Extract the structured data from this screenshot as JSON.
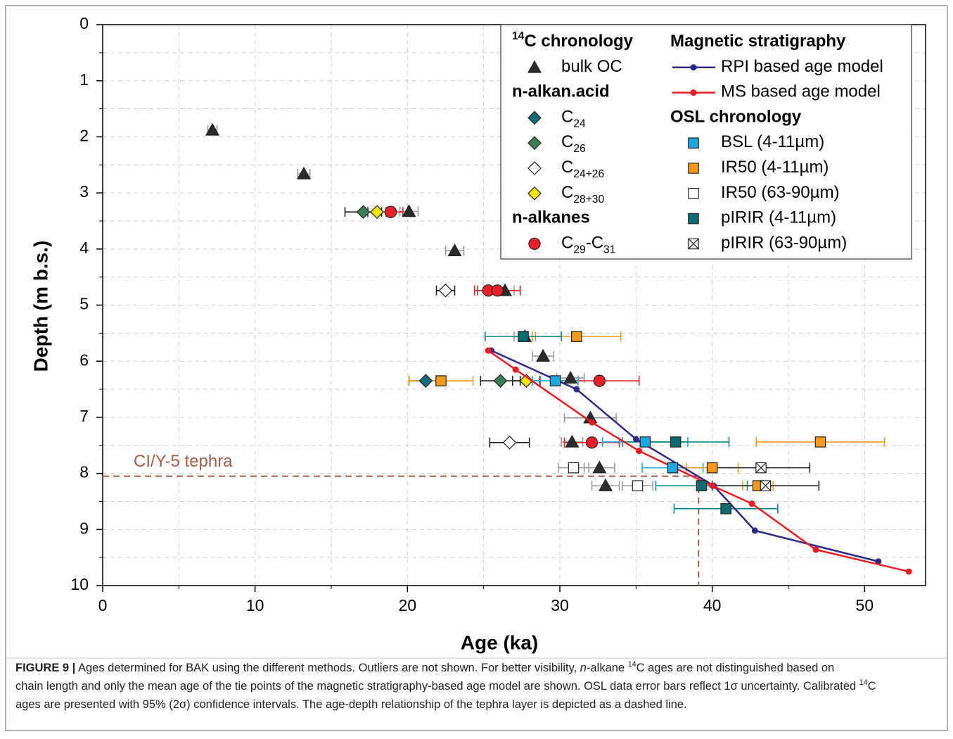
{
  "chart_data": {
    "type": "scatter",
    "x_label": "Age (ka)",
    "y_label": "Depth (m b.s.)",
    "xlim": [
      0,
      54
    ],
    "ylim": [
      0,
      10
    ],
    "y_inverted": true,
    "xticks": [
      0,
      10,
      20,
      30,
      40,
      50
    ],
    "yticks": [
      0,
      1,
      2,
      3,
      4,
      5,
      6,
      7,
      8,
      9,
      10
    ],
    "xminor": [
      5,
      15,
      25,
      35,
      45
    ],
    "yminor": [
      0.5,
      1.5,
      2.5,
      3.5,
      4.5,
      5.5,
      6.5,
      7.5,
      8.5,
      9.5
    ],
    "grid": true,
    "groups": [
      {
        "title": [
          {
            "t": "14",
            "sup": true
          },
          {
            "t": "C chronology"
          }
        ],
        "series": [
          {
            "name": [
              {
                "t": "bulk OC"
              }
            ],
            "marker": "triangle",
            "color": "#2b2b2b",
            "err_color": "#9a9a9a",
            "x": [
              7.2,
              13.2,
              20.1,
              23.1,
              26.4,
              27.7,
              28.9,
              30.7,
              32.0,
              30.8,
              32.6,
              33.0
            ],
            "y": [
              1.88,
              2.66,
              3.33,
              4.03,
              4.74,
              5.56,
              5.91,
              6.3,
              7.01,
              7.44,
              7.9,
              8.22
            ],
            "xerr": [
              0.3,
              0.4,
              0.6,
              0.6,
              0.6,
              0.7,
              0.7,
              0.9,
              1.7,
              0.7,
              1.0,
              0.9
            ]
          }
        ]
      },
      {
        "title": [
          {
            "t": "n-alkan.acid"
          }
        ],
        "series": [
          {
            "name": [
              {
                "t": "C"
              },
              {
                "t": "24",
                "sub": true
              }
            ],
            "marker": "diamond",
            "color": "#166b78",
            "err_color": "#222222",
            "x": [
              21.2
            ],
            "y": [
              6.35
            ],
            "xerr": [
              1.1
            ]
          },
          {
            "name": [
              {
                "t": "C"
              },
              {
                "t": "26",
                "sub": true
              }
            ],
            "marker": "diamond",
            "color": "#3e7c58",
            "err_color": "#222222",
            "x": [
              17.1,
              26.1
            ],
            "y": [
              3.34,
              6.35
            ],
            "xerr": [
              1.2,
              1.3
            ]
          },
          {
            "name": [
              {
                "t": "C"
              },
              {
                "t": "24+26",
                "sub": true
              }
            ],
            "marker": "diamond",
            "color": "#ffffff",
            "err_color": "#222222",
            "x": [
              22.5,
              26.7
            ],
            "y": [
              4.74,
              7.45
            ],
            "xerr": [
              0.6,
              1.3
            ]
          },
          {
            "name": [
              {
                "t": "C"
              },
              {
                "t": "28+30",
                "sub": true
              }
            ],
            "marker": "diamond",
            "color": "#f2e500",
            "err_color": "#222222",
            "x": [
              18.0,
              27.8
            ],
            "y": [
              3.34,
              6.35
            ],
            "xerr": [
              0.6,
              0.9
            ]
          }
        ]
      },
      {
        "title": [
          {
            "t": "n-alkanes"
          }
        ],
        "series": [
          {
            "name": [
              {
                "t": "C"
              },
              {
                "t": "29",
                "sub": true
              },
              {
                "t": "-C"
              },
              {
                "t": "31",
                "sub": true
              }
            ],
            "marker": "circle",
            "color": "#e8202a",
            "err_color": "#e8202a",
            "x": [
              18.9,
              25.3,
              25.9,
              32.6,
              32.1
            ],
            "y": [
              3.34,
              4.74,
              4.74,
              6.35,
              7.45
            ],
            "xerr": [
              0.8,
              0.7,
              1.5,
              2.6,
              1.8
            ]
          }
        ]
      },
      {
        "title": [
          {
            "t": "Magnetic stratigraphy"
          }
        ],
        "series": [
          {
            "name": [
              {
                "t": "RPI based age model"
              }
            ],
            "marker": "line",
            "color": "#2e2a85",
            "x": [
              25.5,
              31.1,
              35.0,
              40.1,
              42.8,
              50.9
            ],
            "y": [
              5.81,
              6.5,
              7.39,
              8.22,
              9.02,
              9.57
            ]
          },
          {
            "name": [
              {
                "t": "MS based age model"
              }
            ],
            "marker": "line",
            "color": "#ec1c24",
            "x": [
              25.3,
              27.1,
              32.1,
              35.2,
              40.0,
              42.6,
              46.8,
              52.9
            ],
            "y": [
              5.81,
              6.15,
              7.09,
              7.6,
              8.22,
              8.54,
              9.36,
              9.75
            ]
          }
        ]
      },
      {
        "title": [
          {
            "t": "OSL chronology"
          }
        ],
        "series": [
          {
            "name": [
              {
                "t": "BSL (4-11µm)"
              }
            ],
            "marker": "square",
            "color": "#1ea6e0",
            "err_color": "#1ea6e0",
            "x": [
              29.7,
              35.6,
              37.4
            ],
            "y": [
              6.35,
              7.44,
              7.9
            ],
            "xerr": [
              1.5,
              2.8,
              2.0
            ]
          },
          {
            "name": [
              {
                "t": "IR50 (4-11µm)"
              }
            ],
            "marker": "square",
            "color": "#f39a1e",
            "err_color": "#f39a1e",
            "x": [
              31.1,
              22.2,
              47.1,
              40.0,
              43.0
            ],
            "y": [
              5.56,
              6.35,
              7.44,
              7.9,
              8.22
            ],
            "xerr": [
              2.9,
              2.1,
              4.2,
              1.7,
              1.0
            ]
          },
          {
            "name": [
              {
                "t": "IR50 (63-90µm)"
              }
            ],
            "marker": "square",
            "color": "#ffffff",
            "err_color": "#999999",
            "x": [
              30.9,
              35.1
            ],
            "y": [
              7.9,
              8.22
            ],
            "xerr": [
              1.0,
              1.0
            ]
          },
          {
            "name": [
              {
                "t": "pIRIR (4-11µm)"
              }
            ],
            "marker": "square",
            "color": "#0b6b6e",
            "err_color": "#0b8a8e",
            "x": [
              27.6,
              37.6,
              39.3,
              40.9
            ],
            "y": [
              5.56,
              7.44,
              8.22,
              8.63
            ],
            "xerr": [
              2.5,
              3.5,
              3.0,
              3.4
            ]
          },
          {
            "name": [
              {
                "t": "pIRIR (63-90µm)"
              }
            ],
            "marker": "squarex",
            "color": "#ffffff",
            "err_color": "#222222",
            "x": [
              43.2,
              43.5
            ],
            "y": [
              7.9,
              8.22
            ],
            "xerr": [
              3.2,
              3.5
            ]
          }
        ]
      }
    ],
    "annotations": [
      {
        "text": "CI/Y-5 tephra",
        "x": 39.1,
        "y": 8.05,
        "color": "#a0604a"
      }
    ],
    "caption": [
      [
        {
          "t": "FIGURE 9 |",
          "b": true
        },
        {
          "t": " Ages determined for BAK using the different methods. Outliers are not shown. For better visibility, "
        },
        {
          "t": "n",
          "i": true
        },
        {
          "t": "-alkane "
        },
        {
          "t": "14",
          "sup": true
        },
        {
          "t": "C ages are not distinguished based on"
        }
      ],
      [
        {
          "t": "chain length and only the mean age of the tie points of the magnetic stratigraphy-based age model are shown. OSL data error bars reflect 1σ uncertainty. Calibrated "
        },
        {
          "t": "14",
          "sup": true
        },
        {
          "t": "C"
        }
      ],
      [
        {
          "t": "ages are presented with 95% (2σ) confidence intervals. The age-depth relationship of the tephra layer is depicted as a dashed line."
        }
      ]
    ]
  }
}
